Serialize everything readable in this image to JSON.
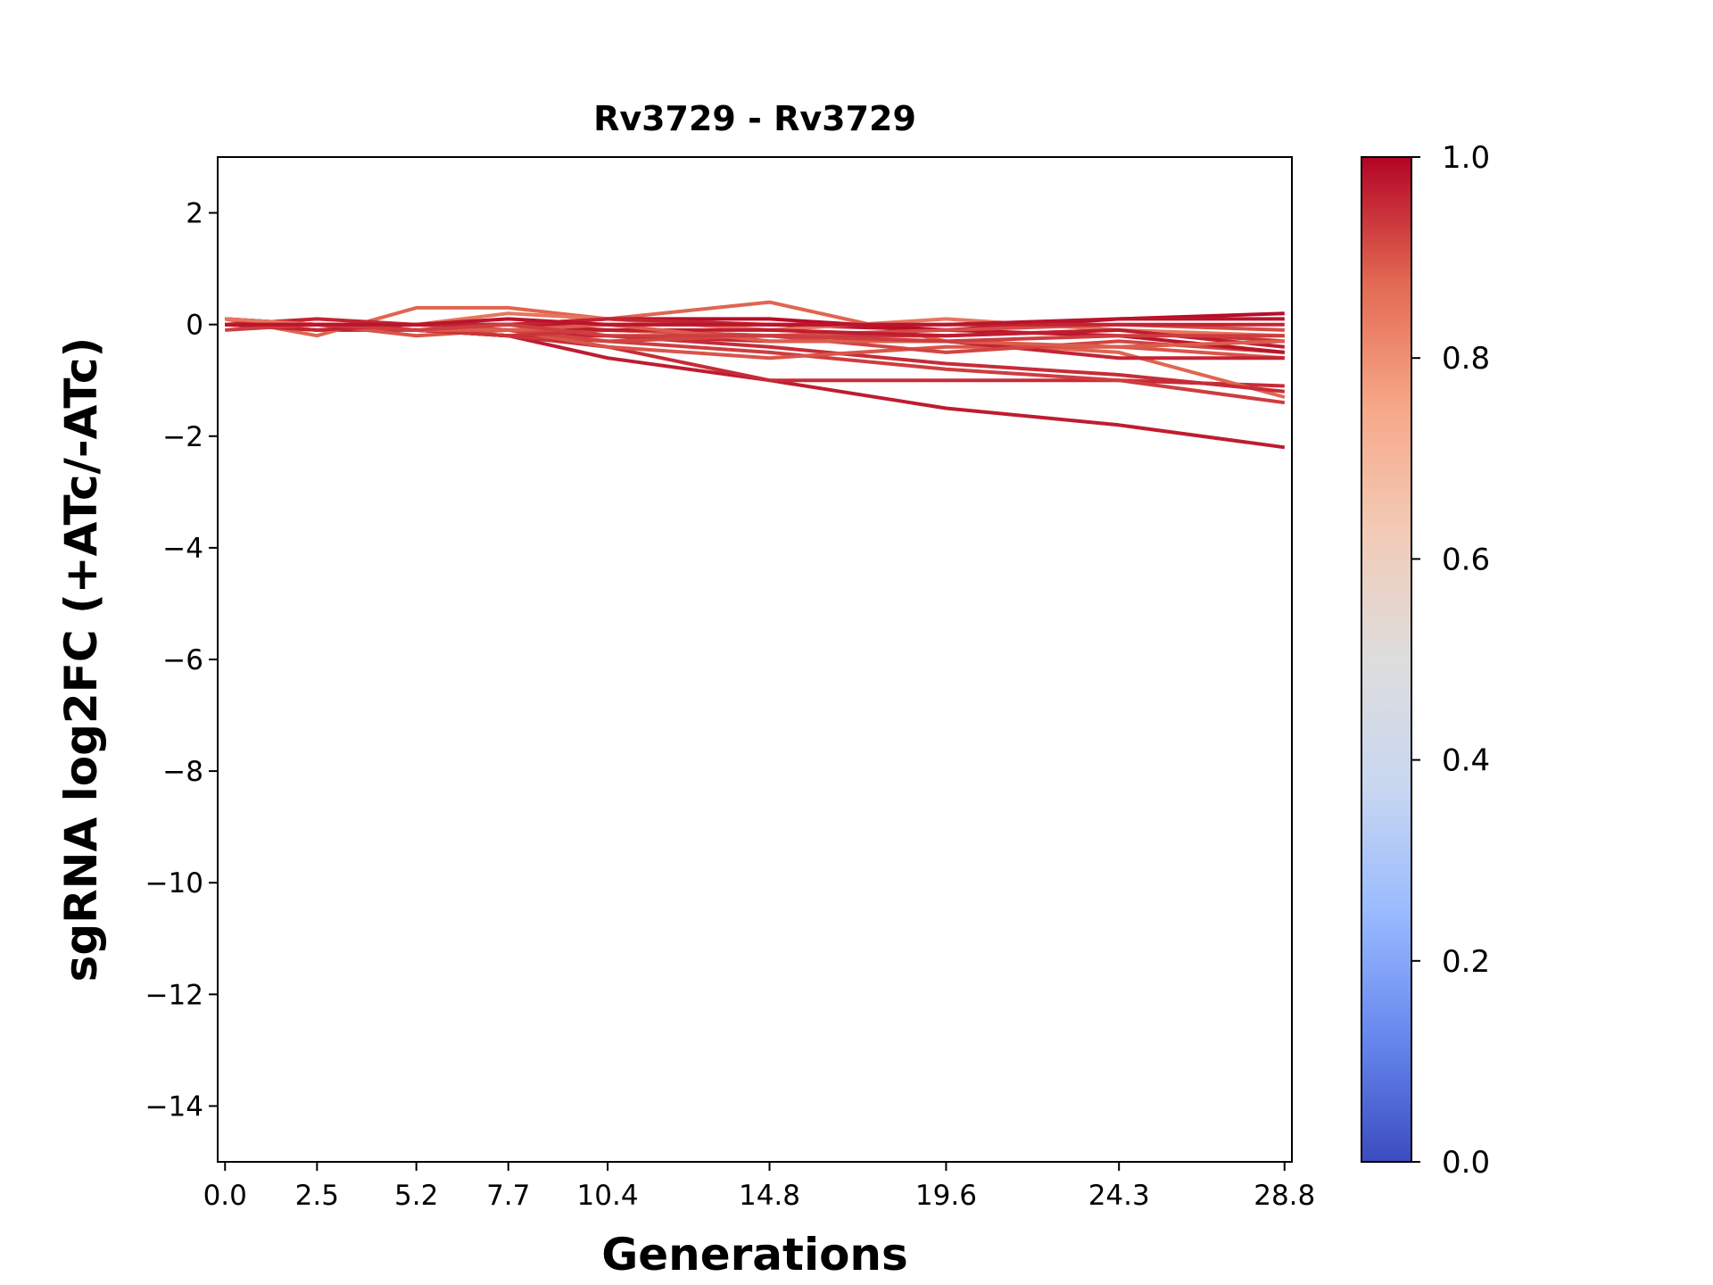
{
  "chart_data": {
    "type": "line",
    "title": "Rv3729 - Rv3729",
    "xlabel": "Generations",
    "ylabel": "sgRNA log2FC (+ATc/-ATc)",
    "x": [
      0.0,
      2.5,
      5.2,
      7.7,
      10.4,
      14.8,
      19.6,
      24.3,
      28.8
    ],
    "x_tick_labels": [
      "0.0",
      "2.5",
      "5.2",
      "7.7",
      "10.4",
      "14.8",
      "19.6",
      "24.3",
      "28.8"
    ],
    "xlim": [
      -0.2,
      29.0
    ],
    "ylim": [
      -15,
      3
    ],
    "y_ticks": [
      2,
      0,
      -2,
      -4,
      -6,
      -8,
      -10,
      -12,
      -14
    ],
    "y_tick_labels": [
      "2",
      "0",
      "−2",
      "−4",
      "−6",
      "−8",
      "−10",
      "−12",
      "−14"
    ],
    "colorbar": {
      "range": [
        0.0,
        1.0
      ],
      "ticks": [
        0.0,
        0.2,
        0.4,
        0.6,
        0.8,
        1.0
      ],
      "tick_labels": [
        "0.0",
        "0.2",
        "0.4",
        "0.6",
        "0.8",
        "1.0"
      ],
      "colormap": "coolwarm",
      "stops": [
        "#3b4cc0",
        "#6788ee",
        "#9abbff",
        "#c9d7f0",
        "#dddddd",
        "#f2cbb7",
        "#f7a889",
        "#e26952",
        "#b40426"
      ]
    },
    "series": [
      {
        "score": 0.97,
        "values": [
          0.0,
          -0.1,
          -0.1,
          -0.2,
          -0.6,
          -1.0,
          -1.5,
          -1.8,
          -2.2
        ]
      },
      {
        "score": 0.95,
        "values": [
          0.1,
          0.0,
          -0.1,
          -0.2,
          -0.4,
          -1.0,
          -1.0,
          -1.0,
          -1.1
        ]
      },
      {
        "score": 0.93,
        "values": [
          0.0,
          0.0,
          -0.1,
          -0.2,
          -0.3,
          -0.5,
          -0.8,
          -1.0,
          -1.4
        ]
      },
      {
        "score": 0.88,
        "values": [
          0.1,
          -0.2,
          0.3,
          0.3,
          0.1,
          0.4,
          -0.3,
          -0.5,
          -1.3
        ]
      },
      {
        "score": 0.95,
        "values": [
          0.0,
          0.0,
          -0.1,
          -0.2,
          -0.2,
          -0.4,
          -0.7,
          -0.9,
          -1.2
        ]
      },
      {
        "score": 0.9,
        "values": [
          0.1,
          0.0,
          -0.2,
          -0.1,
          -0.4,
          -0.6,
          -0.4,
          -0.4,
          -0.6
        ]
      },
      {
        "score": 0.96,
        "values": [
          0.0,
          0.1,
          0.0,
          -0.1,
          -0.2,
          -0.3,
          -0.3,
          -0.6,
          -0.6
        ]
      },
      {
        "score": 0.92,
        "values": [
          0.1,
          0.0,
          -0.1,
          -0.1,
          -0.3,
          -0.2,
          -0.5,
          -0.3,
          -0.5
        ]
      },
      {
        "score": 0.98,
        "values": [
          0.0,
          0.0,
          0.0,
          0.0,
          0.0,
          0.0,
          -0.1,
          -0.2,
          -0.5
        ]
      },
      {
        "score": 0.99,
        "values": [
          0.0,
          0.0,
          0.0,
          0.0,
          0.1,
          0.1,
          -0.1,
          0.1,
          0.2
        ]
      },
      {
        "score": 0.94,
        "values": [
          0.1,
          0.0,
          -0.1,
          -0.2,
          -0.1,
          -0.2,
          -0.2,
          -0.1,
          -0.3
        ]
      },
      {
        "score": 0.85,
        "values": [
          0.1,
          0.0,
          0.0,
          0.2,
          0.1,
          -0.1,
          0.1,
          -0.1,
          -0.2
        ]
      },
      {
        "score": 0.91,
        "values": [
          0.0,
          0.0,
          0.0,
          -0.1,
          -0.1,
          -0.2,
          -0.1,
          0.0,
          -0.1
        ]
      },
      {
        "score": 0.97,
        "values": [
          0.0,
          0.0,
          0.0,
          0.0,
          -0.1,
          -0.1,
          -0.2,
          -0.1,
          -0.4
        ]
      },
      {
        "score": 0.89,
        "values": [
          0.0,
          0.0,
          -0.1,
          -0.1,
          0.0,
          -0.3,
          -0.3,
          -0.4,
          -0.3
        ]
      },
      {
        "score": 0.96,
        "values": [
          0.0,
          -0.1,
          0.0,
          0.0,
          0.1,
          0.0,
          0.0,
          0.0,
          0.0
        ]
      },
      {
        "score": 0.93,
        "values": [
          -0.1,
          0.0,
          -0.1,
          0.0,
          -0.2,
          -0.2,
          -0.3,
          -0.2,
          -0.2
        ]
      },
      {
        "score": 0.98,
        "values": [
          0.0,
          0.0,
          0.0,
          0.1,
          0.0,
          0.0,
          0.0,
          0.1,
          0.1
        ]
      }
    ]
  }
}
